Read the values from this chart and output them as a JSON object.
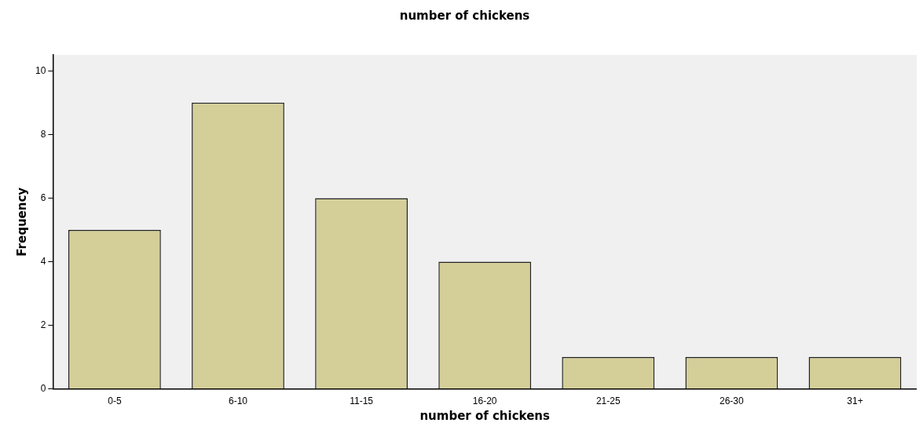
{
  "chart_data": {
    "type": "bar",
    "title": "number of chickens",
    "xlabel": "number of chickens",
    "ylabel": "Frequency",
    "categories": [
      "0-5",
      "6-10",
      "11-15",
      "16-20",
      "21-25",
      "26-30",
      "31+"
    ],
    "values": [
      5,
      9,
      6,
      4,
      1,
      1,
      1
    ],
    "color": "#d4cf99",
    "ylim": [
      0,
      10.5
    ],
    "yticks": [
      0,
      2,
      4,
      6,
      8,
      10
    ],
    "grid": false,
    "legend": false
  }
}
